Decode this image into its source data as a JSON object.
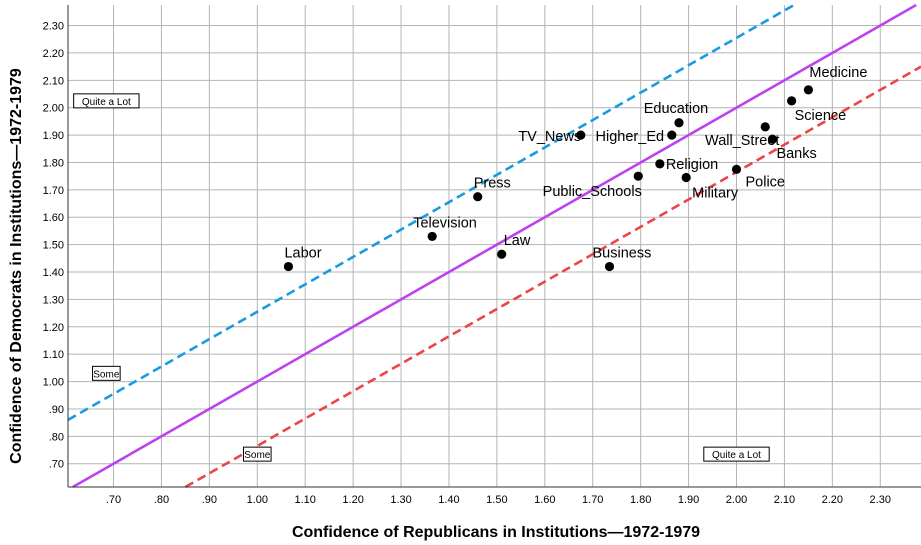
{
  "chart_data": {
    "type": "scatter",
    "title": "",
    "xlabel": "Confidence of Republicans in Institutions—1972-1979",
    "ylabel": "Confidence of Democrats in Institutions—1972-1979",
    "xlim": [
      0.605,
      2.385
    ],
    "ylim": [
      0.615,
      2.375
    ],
    "x_ticks": [
      0.7,
      0.8,
      0.9,
      1.0,
      1.1,
      1.2,
      1.3,
      1.4,
      1.5,
      1.6,
      1.7,
      1.8,
      1.9,
      2.0,
      2.1,
      2.2,
      2.3
    ],
    "x_tick_labels": [
      ".70",
      ".80",
      ".90",
      "1.00",
      "1.10",
      "1.20",
      "1.30",
      "1.40",
      "1.50",
      "1.60",
      "1.70",
      "1.80",
      "1.90",
      "2.00",
      "2.10",
      "2.20",
      "2.30"
    ],
    "y_ticks": [
      0.7,
      0.8,
      0.9,
      1.0,
      1.1,
      1.2,
      1.3,
      1.4,
      1.5,
      1.6,
      1.7,
      1.8,
      1.9,
      2.0,
      2.1,
      2.2,
      2.3
    ],
    "y_tick_labels": [
      ".70",
      ".80",
      ".90",
      "1.00",
      "1.10",
      "1.20",
      "1.30",
      "1.40",
      "1.50",
      "1.60",
      "1.70",
      "1.80",
      "1.90",
      "2.00",
      "2.10",
      "2.20",
      "2.30"
    ],
    "grid": true,
    "points": [
      {
        "label": "Labor",
        "x": 1.065,
        "y": 1.42
      },
      {
        "label": "Television",
        "x": 1.365,
        "y": 1.53
      },
      {
        "label": "Press",
        "x": 1.46,
        "y": 1.675
      },
      {
        "label": "Law",
        "x": 1.51,
        "y": 1.465
      },
      {
        "label": "TV_News",
        "x": 1.675,
        "y": 1.9
      },
      {
        "label": "Business",
        "x": 1.735,
        "y": 1.42
      },
      {
        "label": "Public_Schools",
        "x": 1.795,
        "y": 1.75
      },
      {
        "label": "Religion",
        "x": 1.84,
        "y": 1.795
      },
      {
        "label": "Higher_Ed",
        "x": 1.865,
        "y": 1.9
      },
      {
        "label": "Education",
        "x": 1.88,
        "y": 1.945
      },
      {
        "label": "Military",
        "x": 1.895,
        "y": 1.745
      },
      {
        "label": "Police",
        "x": 2.0,
        "y": 1.775
      },
      {
        "label": "Wall_Street",
        "x": 2.06,
        "y": 1.93
      },
      {
        "label": "Banks",
        "x": 2.075,
        "y": 1.885
      },
      {
        "label": "Science",
        "x": 2.115,
        "y": 2.025
      },
      {
        "label": "Medicine",
        "x": 2.15,
        "y": 2.065
      }
    ],
    "reference_lines": [
      {
        "kind": "solid",
        "color": "#bb44ee",
        "slope": 1.0,
        "intercept": 0.0
      },
      {
        "kind": "dashed",
        "color": "#1a9be0",
        "slope": 1.0,
        "intercept": 0.255
      },
      {
        "kind": "dashed",
        "color": "#ee4444",
        "slope": 1.0,
        "intercept": -0.235
      }
    ],
    "region_labels": [
      {
        "text": "Quite a Lot",
        "x": 0.685,
        "y": 2.025
      },
      {
        "text": "Some",
        "x": 0.685,
        "y": 1.03
      },
      {
        "text": "Some",
        "x": 1.0,
        "y": 0.735
      },
      {
        "text": "Quite a Lot",
        "x": 2.0,
        "y": 0.735
      }
    ]
  }
}
